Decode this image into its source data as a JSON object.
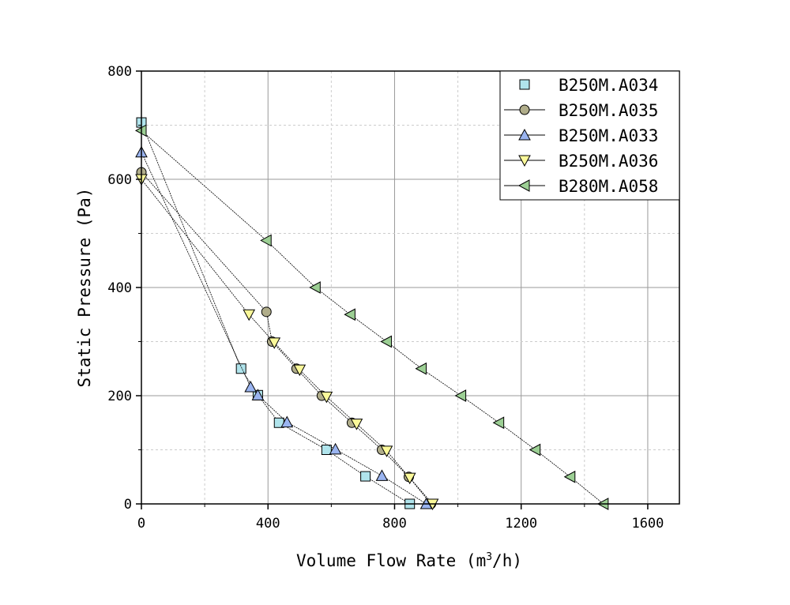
{
  "chart_data": {
    "type": "line",
    "title": "",
    "xlabel": "Volume Flow Rate (m3/h)",
    "xlabel_main": "Volume Flow Rate (m",
    "xlabel_sup": "3",
    "xlabel_end": "/h)",
    "ylabel": "Static Pressure (Pa)",
    "xlim": [
      0,
      1700
    ],
    "ylim": [
      0,
      800
    ],
    "xticks": [
      0,
      400,
      800,
      1200,
      1600
    ],
    "yticks": [
      0,
      200,
      400,
      600,
      800
    ],
    "grid": true,
    "legend_position": "top-right",
    "series": [
      {
        "name": "B250M.A034",
        "marker": "square",
        "color": "#b0e4ec",
        "x": [
          0,
          315,
          368,
          435,
          585,
          708,
          848
        ],
        "y": [
          705,
          250,
          201,
          150,
          100,
          51,
          0
        ]
      },
      {
        "name": "B250M.A035",
        "marker": "circle",
        "color": "#b0ad8a",
        "x": [
          0,
          395,
          413,
          490,
          570,
          665,
          760,
          845,
          915
        ],
        "y": [
          613,
          355,
          300,
          250,
          200,
          150,
          100,
          50,
          0
        ]
      },
      {
        "name": "B250M.A033",
        "marker": "triangle-up",
        "color": "#9ab4f0",
        "x": [
          0,
          345,
          368,
          460,
          613,
          760,
          900
        ],
        "y": [
          650,
          216,
          201,
          151,
          101,
          52,
          0
        ]
      },
      {
        "name": "B250M.A036",
        "marker": "triangle-down",
        "color": "#fbf99a",
        "x": [
          0,
          340,
          420,
          500,
          585,
          680,
          775,
          848,
          920
        ],
        "y": [
          600,
          350,
          298,
          248,
          198,
          148,
          98,
          48,
          0
        ]
      },
      {
        "name": "B280M.A058",
        "marker": "triangle-left",
        "color": "#9ccf94",
        "x": [
          0,
          395,
          550,
          660,
          775,
          885,
          1010,
          1130,
          1245,
          1355,
          1460
        ],
        "y": [
          690,
          487,
          400,
          350,
          300,
          250,
          200,
          150,
          100,
          50,
          0
        ]
      }
    ]
  }
}
